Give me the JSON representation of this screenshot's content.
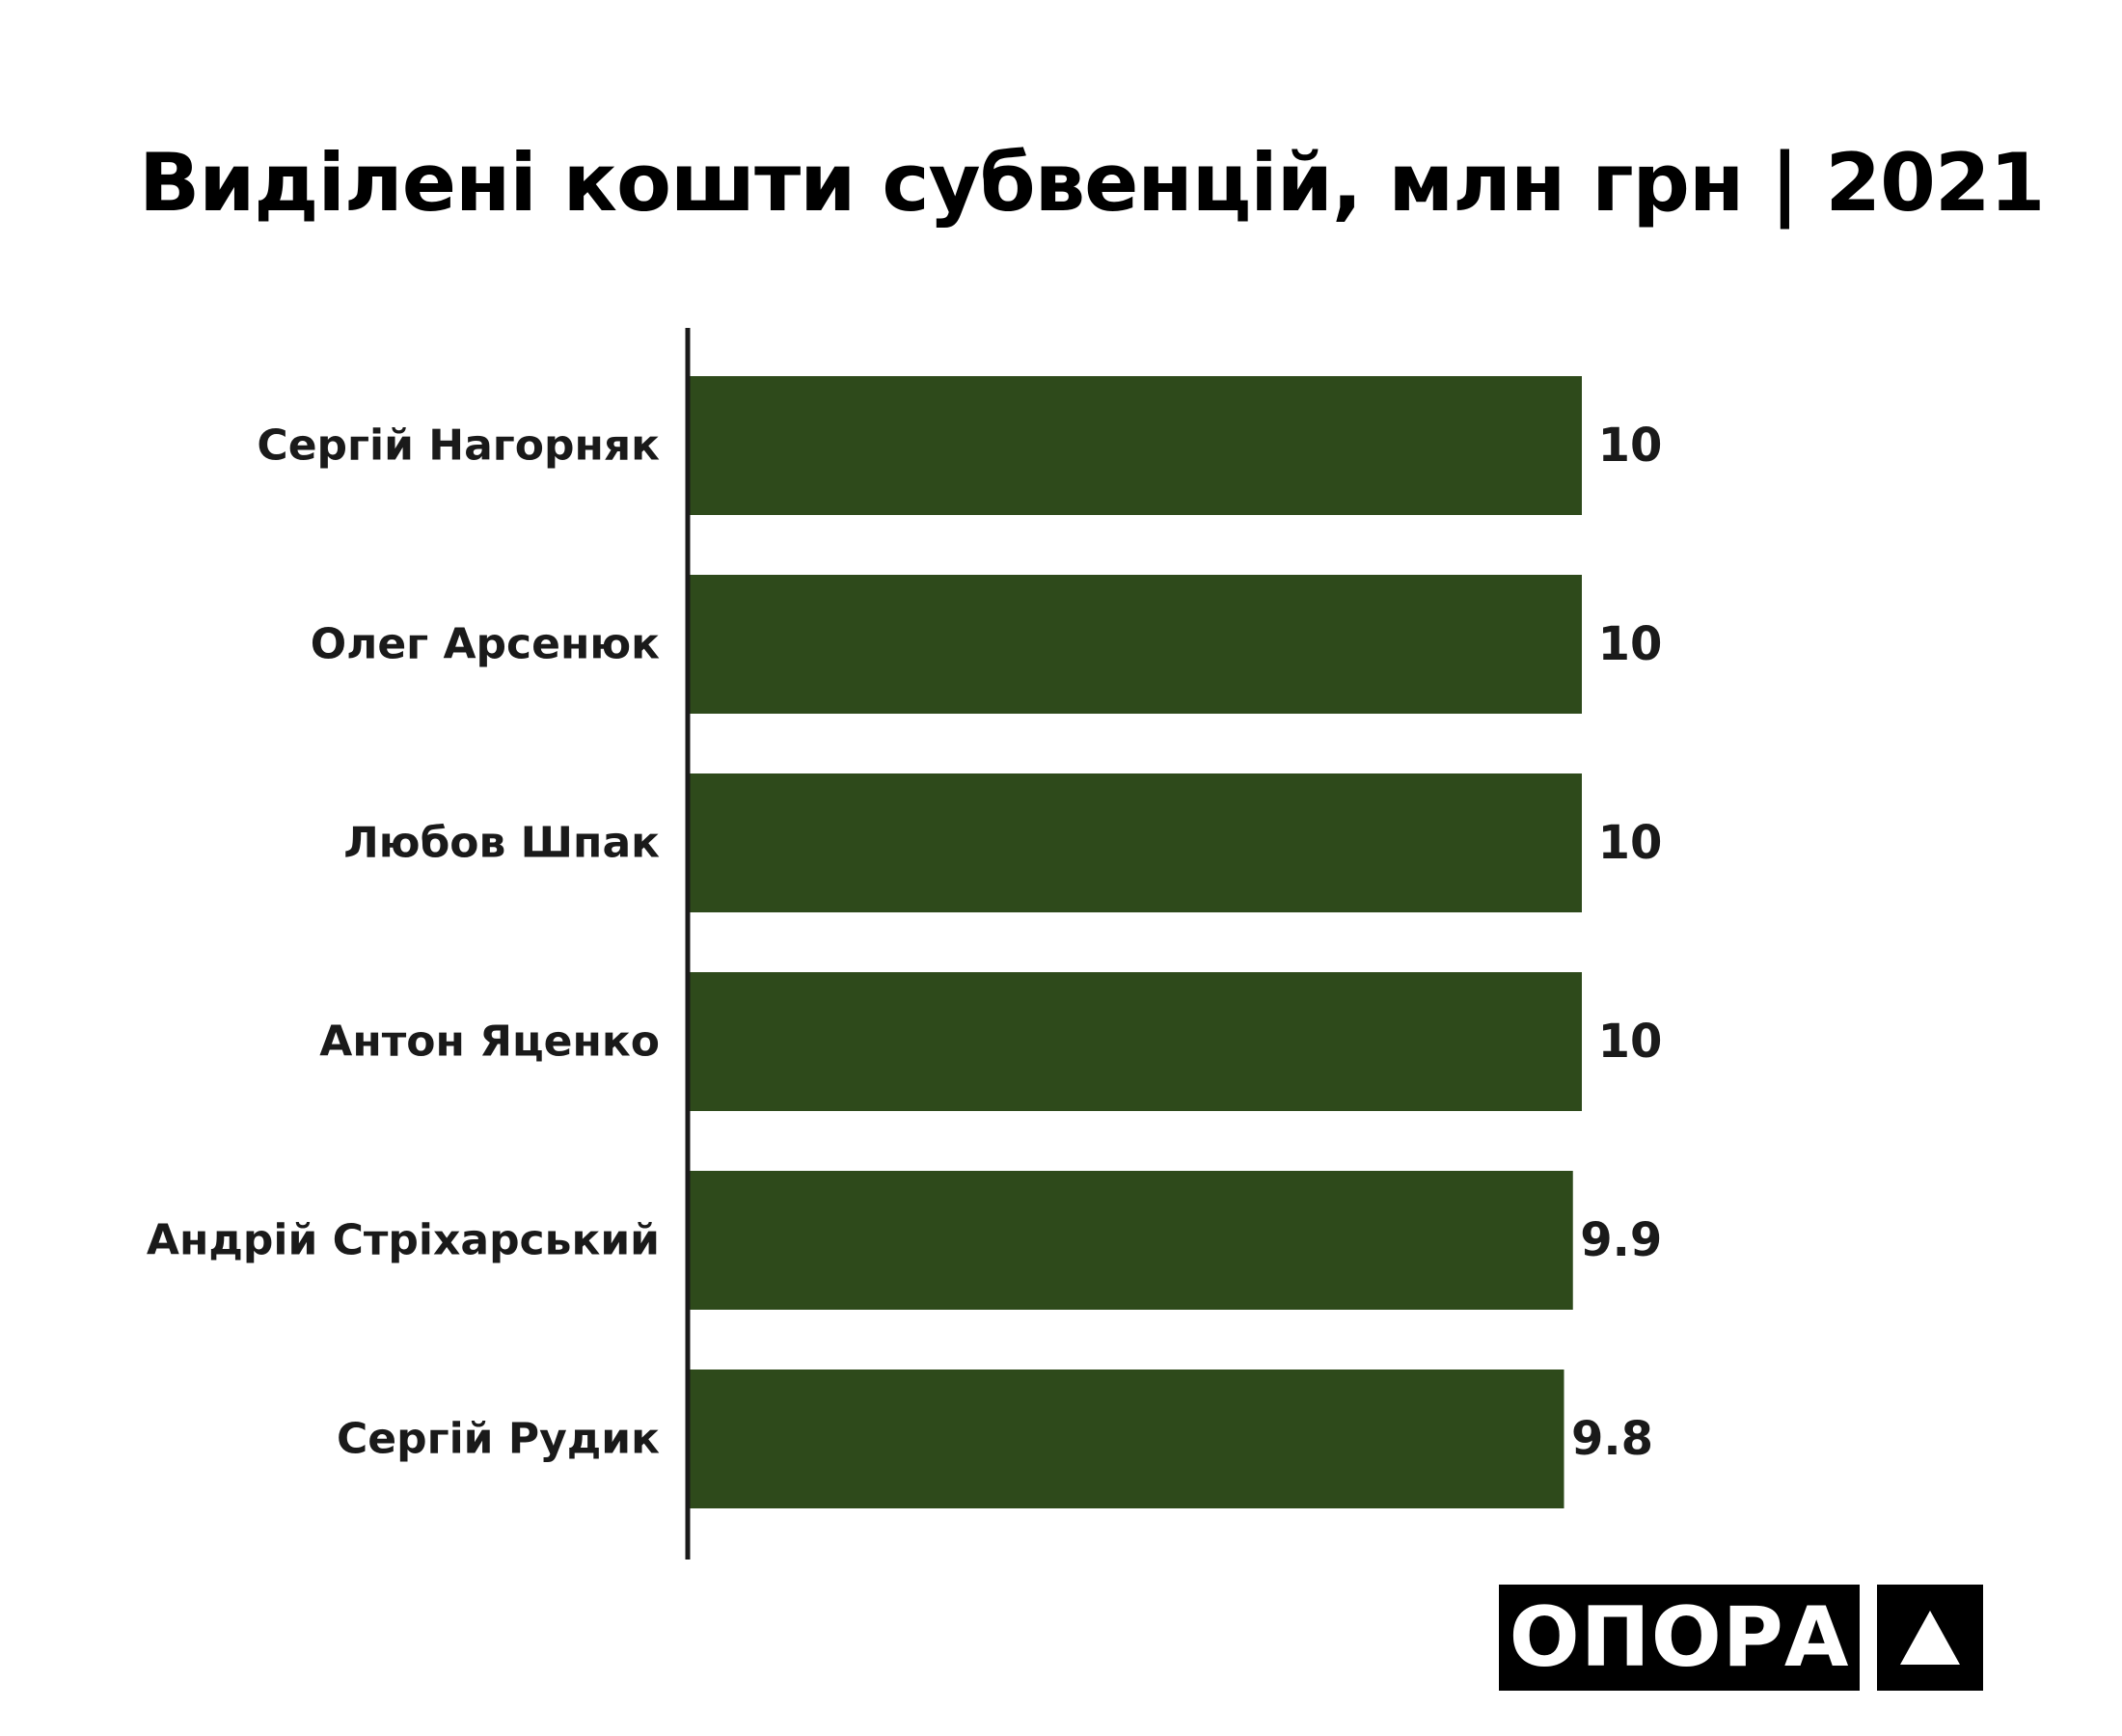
{
  "title": "Виділені кошти субвенцій, млн грн | 2021",
  "logo": {
    "wordmark": "ОПОРА",
    "mark_icon": "triangle-icon"
  },
  "colors": {
    "bar": "#2e4a1b",
    "axis": "#1a1a1a",
    "text": "#1a1a1a",
    "logo_bg": "#000000",
    "logo_fg": "#ffffff"
  },
  "chart_data": {
    "type": "bar",
    "orientation": "horizontal",
    "categories": [
      "Сергій Нагорняк",
      "Олег Арсенюк",
      "Любов Шпак",
      "Антон Яценко",
      "Андрій Стріхарський",
      "Сергій Рудик"
    ],
    "values": [
      10,
      10,
      10,
      10,
      9.9,
      9.8
    ],
    "data_labels": [
      "10",
      "10",
      "10",
      "10",
      "9.9",
      "9.8"
    ],
    "title": "Виділені кошти субвенцій, млн грн | 2021",
    "xlabel": "",
    "ylabel": "",
    "xlim": [
      0,
      10
    ],
    "grid": false,
    "legend": "none"
  }
}
